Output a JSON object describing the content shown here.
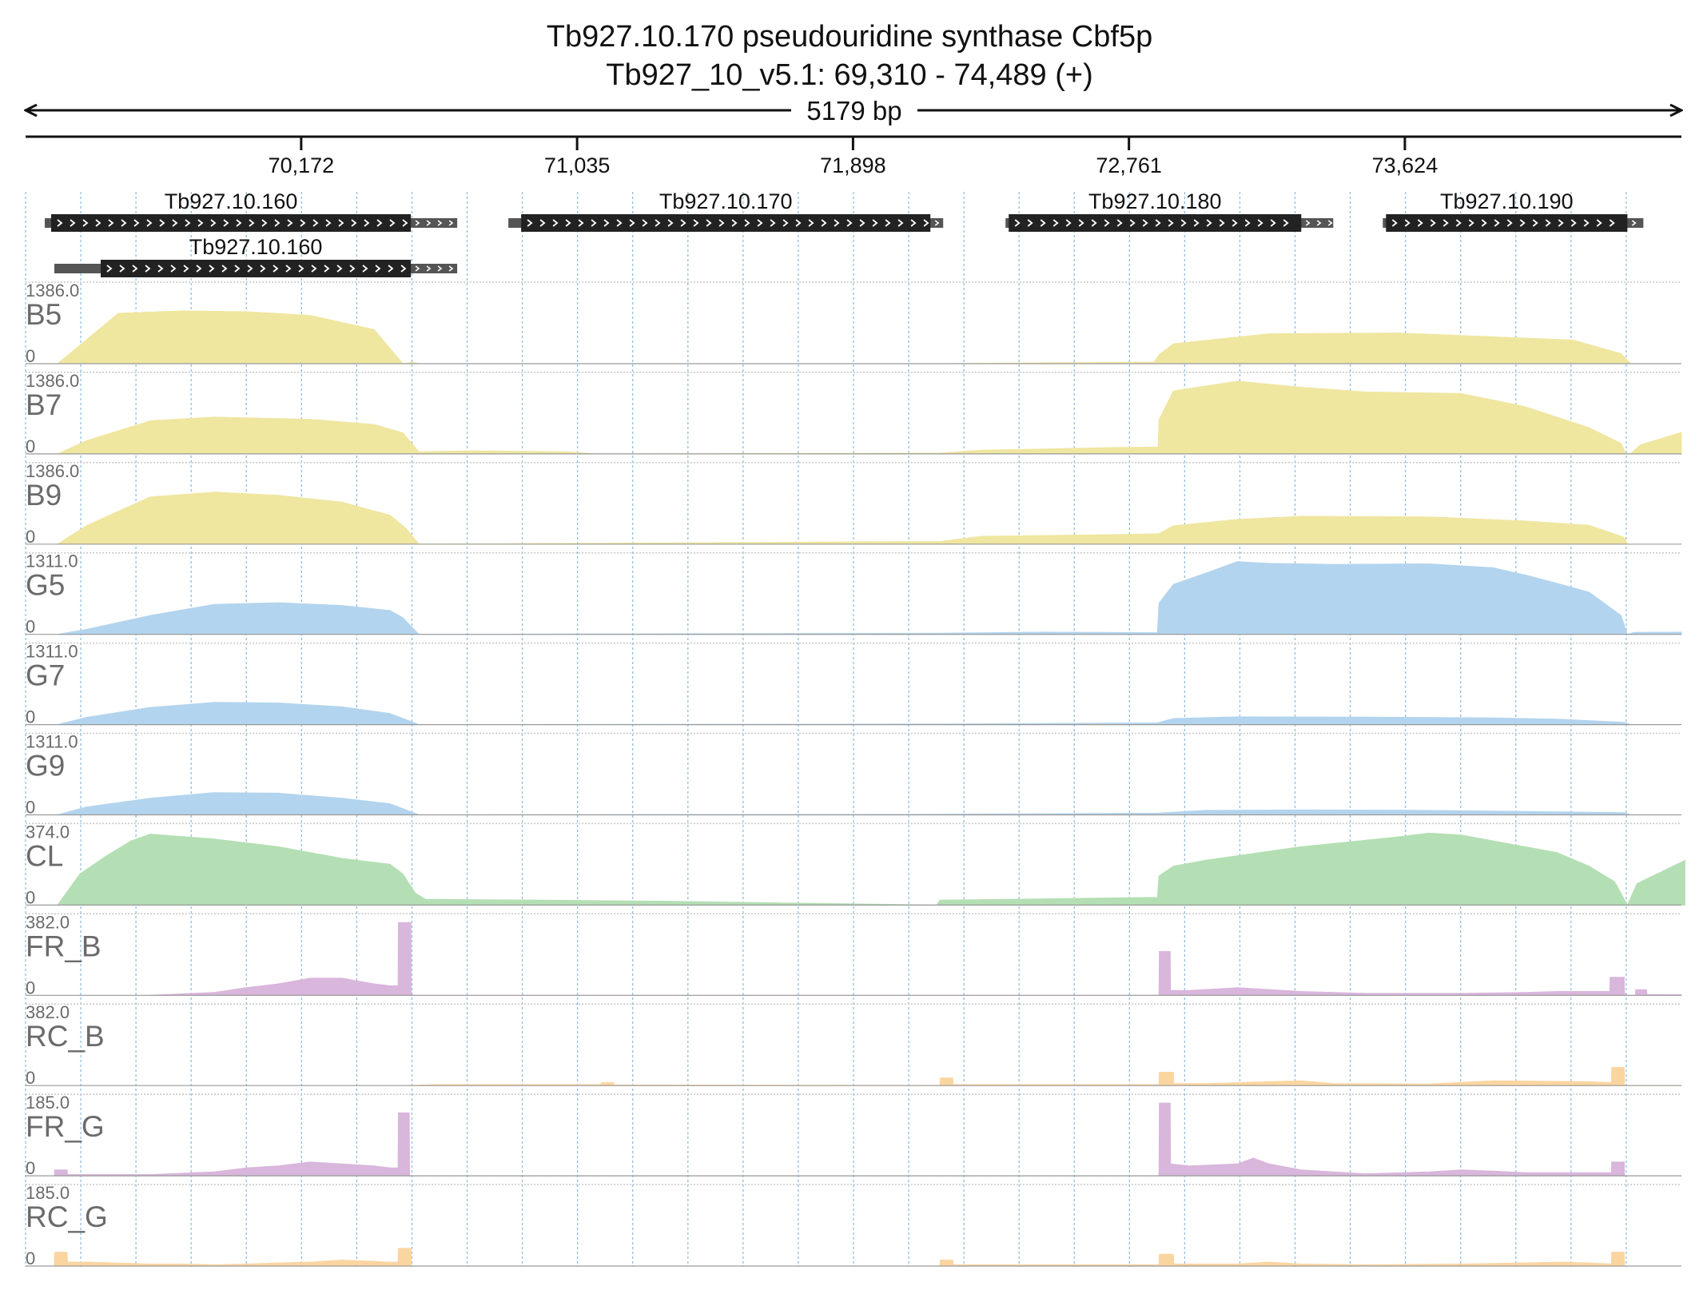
{
  "header": {
    "title": "Tb927.10.170  pseudouridine synthase  Cbf5p",
    "locus": "Tb927_10_v5.1: 69,310 - 74,489 (+)",
    "span_label": "5179 bp"
  },
  "colors": {
    "B": "#efe6a0",
    "G": "#b3d4ee",
    "CL": "#b4dfb4",
    "FR": "#d9b6dc",
    "RC": "#fbd5a0",
    "gene_body": "#222222",
    "gene_utr": "#555555",
    "gridline": "#8fbfe0",
    "label": "#6b6b6b"
  },
  "chart_data": {
    "type": "area",
    "x_domain": [
      69310,
      74489
    ],
    "ticks": [
      70172,
      71035,
      71898,
      72761,
      73624
    ],
    "tick_labels": [
      "70,172",
      "71,035",
      "71,898",
      "72,761",
      "73,624"
    ],
    "genes": [
      {
        "name": "Tb927.10.160",
        "show_label": true,
        "utr_start": 69370,
        "cds_start": 69390,
        "cds_end": 70515,
        "utr_end": 70660,
        "row": 0
      },
      {
        "name": "Tb927.10.170",
        "show_label": true,
        "utr_start": 70820,
        "cds_start": 70860,
        "cds_end": 72140,
        "utr_end": 72180,
        "row": 0
      },
      {
        "name": "Tb927.10.180",
        "show_label": true,
        "utr_start": 72375,
        "cds_start": 72385,
        "cds_end": 73300,
        "utr_end": 73400,
        "row": 0
      },
      {
        "name": "Tb927.10.190",
        "show_label": true,
        "utr_start": 73555,
        "cds_start": 73565,
        "cds_end": 74320,
        "utr_end": 74370,
        "row": 0
      },
      {
        "name": "Tb927.10.160",
        "show_label": true,
        "utr_start": 69400,
        "cds_start": 69545,
        "cds_end": 70515,
        "utr_end": 70660,
        "row": 1
      }
    ],
    "tracks": [
      {
        "name": "B5",
        "max_label": "1386.0",
        "zero_label": "0",
        "color_key": "B",
        "x": [
          69410,
          69470,
          69600,
          69800,
          70000,
          70200,
          70400,
          70490,
          70520,
          70540,
          72161,
          72840,
          72855,
          72900,
          73200,
          73600,
          74150,
          74300,
          74330,
          74489
        ],
        "y": [
          0,
          300,
          960,
          1005,
          990,
          920,
          650,
          0,
          25,
          0,
          0,
          30,
          170,
          380,
          570,
          585,
          450,
          190,
          0,
          0
        ]
      },
      {
        "name": "B7",
        "max_label": "1386.0",
        "zero_label": "0",
        "color_key": "B",
        "x": [
          69410,
          69500,
          69700,
          69900,
          70200,
          70400,
          70490,
          70540,
          70700,
          71000,
          71100,
          72170,
          72300,
          72700,
          72852,
          72855,
          72900,
          73100,
          73300,
          73500,
          73800,
          74000,
          74200,
          74300,
          74315,
          74330,
          74360,
          74489
        ],
        "y": [
          0,
          250,
          630,
          700,
          660,
          560,
          400,
          40,
          60,
          40,
          0,
          15,
          70,
          120,
          130,
          650,
          1200,
          1385,
          1270,
          1180,
          1150,
          900,
          500,
          200,
          0,
          0,
          170,
          410
        ]
      },
      {
        "name": "B9",
        "max_label": "1386.0",
        "zero_label": "0",
        "color_key": "B",
        "x": [
          69410,
          69500,
          69700,
          69900,
          70100,
          70300,
          70450,
          70500,
          70540,
          72170,
          72300,
          72700,
          72855,
          72900,
          73100,
          73300,
          73700,
          74000,
          74200,
          74310,
          74320
        ],
        "y": [
          0,
          350,
          900,
          990,
          930,
          800,
          550,
          300,
          0,
          50,
          150,
          180,
          200,
          350,
          470,
          530,
          520,
          440,
          360,
          130,
          0
        ]
      },
      {
        "name": "G5",
        "max_label": "1311.0",
        "zero_label": "0",
        "color_key": "G",
        "x": [
          69410,
          69500,
          69700,
          69900,
          70100,
          70300,
          70450,
          70490,
          70540,
          72170,
          72500,
          72850,
          72855,
          72900,
          73000,
          73100,
          73200,
          73400,
          73700,
          73900,
          74000,
          74100,
          74200,
          74300,
          74320,
          74340,
          74489
        ],
        "y": [
          0,
          90,
          340,
          540,
          570,
          520,
          430,
          300,
          0,
          20,
          40,
          30,
          560,
          900,
          1100,
          1311,
          1280,
          1260,
          1270,
          1200,
          1070,
          920,
          760,
          340,
          0,
          35,
          40
        ]
      },
      {
        "name": "G7",
        "max_label": "1311.0",
        "zero_label": "0",
        "color_key": "G",
        "x": [
          69410,
          69500,
          69700,
          69900,
          70100,
          70300,
          70450,
          70540,
          72170,
          72850,
          72900,
          73100,
          73500,
          73900,
          74100,
          74310,
          74330
        ],
        "y": [
          0,
          130,
          310,
          400,
          390,
          320,
          200,
          0,
          10,
          30,
          110,
          140,
          135,
          120,
          100,
          40,
          0
        ]
      },
      {
        "name": "G9",
        "max_label": "1311.0",
        "zero_label": "0",
        "color_key": "G",
        "x": [
          69410,
          69500,
          69700,
          69900,
          70100,
          70300,
          70450,
          70540,
          72170,
          72850,
          73000,
          73300,
          73600,
          74000,
          74310,
          74330
        ],
        "y": [
          0,
          140,
          300,
          400,
          390,
          300,
          200,
          0,
          10,
          30,
          80,
          90,
          85,
          60,
          40,
          0
        ]
      },
      {
        "name": "CL",
        "max_label": "374.0",
        "zero_label": "0",
        "color_key": "CL",
        "x": [
          69410,
          69480,
          69560,
          69640,
          69700,
          69900,
          70100,
          70300,
          70450,
          70490,
          70530,
          70560,
          71300,
          72160,
          72170,
          72400,
          72850,
          72855,
          72900,
          73000,
          73300,
          73600,
          73700,
          73800,
          74000,
          74100,
          74200,
          74280,
          74300,
          74320,
          74350,
          74500
        ],
        "y": [
          0,
          160,
          250,
          330,
          365,
          340,
          300,
          240,
          210,
          160,
          60,
          30,
          20,
          0,
          25,
          30,
          40,
          150,
          200,
          230,
          300,
          350,
          370,
          360,
          300,
          270,
          200,
          120,
          60,
          0,
          110,
          230
        ]
      },
      {
        "name": "FR_B",
        "max_label": "382.0",
        "zero_label": "0",
        "color_key": "FR",
        "x": [
          69700,
          69900,
          70000,
          70100,
          70200,
          70300,
          70400,
          70450,
          70475,
          70476,
          70515,
          70516,
          70540,
          72855,
          72856,
          72890,
          72891,
          72950,
          73100,
          73300,
          73500,
          73800,
          74000,
          74100,
          74265,
          74266,
          74310,
          74311,
          74320,
          74345,
          74346,
          74380,
          74381,
          74489
        ],
        "y": [
          0,
          15,
          40,
          60,
          90,
          90,
          60,
          50,
          50,
          382,
          382,
          0,
          0,
          0,
          230,
          230,
          25,
          25,
          40,
          20,
          10,
          10,
          15,
          20,
          20,
          95,
          95,
          10,
          0,
          0,
          30,
          30,
          5,
          3
        ]
      },
      {
        "name": "RC_B",
        "max_label": "382.0",
        "zero_label": "0",
        "color_key": "RC",
        "x": [
          70500,
          70600,
          71000,
          71110,
          71111,
          71150,
          71151,
          72170,
          72171,
          72210,
          72211,
          72700,
          72855,
          72856,
          72900,
          72901,
          73000,
          73200,
          73300,
          73400,
          73700,
          73900,
          74200,
          74270,
          74271,
          74310,
          74311,
          74489
        ],
        "y": [
          0,
          5,
          5,
          5,
          15,
          15,
          3,
          0,
          40,
          40,
          5,
          5,
          5,
          70,
          70,
          10,
          10,
          20,
          25,
          10,
          8,
          25,
          20,
          15,
          95,
          95,
          0,
          0
        ]
      },
      {
        "name": "FR_G",
        "max_label": "185.0",
        "zero_label": "0",
        "color_key": "FR",
        "x": [
          69400,
          69401,
          69440,
          69441,
          69700,
          69900,
          70000,
          70100,
          70200,
          70300,
          70400,
          70450,
          70475,
          70476,
          70510,
          70511,
          70540,
          72855,
          72856,
          72890,
          72891,
          72950,
          73100,
          73150,
          73200,
          73300,
          73500,
          73700,
          73800,
          73900,
          74000,
          74200,
          74270,
          74271,
          74310,
          74311,
          74320
        ],
        "y": [
          0,
          15,
          15,
          3,
          3,
          10,
          20,
          25,
          35,
          30,
          25,
          20,
          20,
          160,
          160,
          0,
          0,
          0,
          185,
          185,
          30,
          25,
          30,
          45,
          30,
          15,
          5,
          10,
          15,
          12,
          8,
          8,
          8,
          35,
          35,
          0,
          0
        ]
      },
      {
        "name": "RC_G",
        "max_label": "185.0",
        "zero_label": "0",
        "color_key": "RC",
        "x": [
          69400,
          69401,
          69440,
          69441,
          69500,
          69700,
          69800,
          69900,
          70000,
          70100,
          70200,
          70300,
          70400,
          70450,
          70475,
          70476,
          70515,
          70516,
          72170,
          72171,
          72210,
          72211,
          72855,
          72856,
          72900,
          72901,
          73100,
          73200,
          73300,
          73500,
          73800,
          74000,
          74100,
          74200,
          74270,
          74271,
          74310,
          74311,
          74489
        ],
        "y": [
          0,
          35,
          35,
          10,
          10,
          5,
          5,
          3,
          5,
          8,
          10,
          15,
          12,
          10,
          10,
          45,
          45,
          0,
          0,
          15,
          15,
          3,
          3,
          30,
          30,
          5,
          5,
          10,
          5,
          3,
          5,
          8,
          10,
          8,
          5,
          35,
          35,
          0,
          0
        ]
      }
    ]
  }
}
